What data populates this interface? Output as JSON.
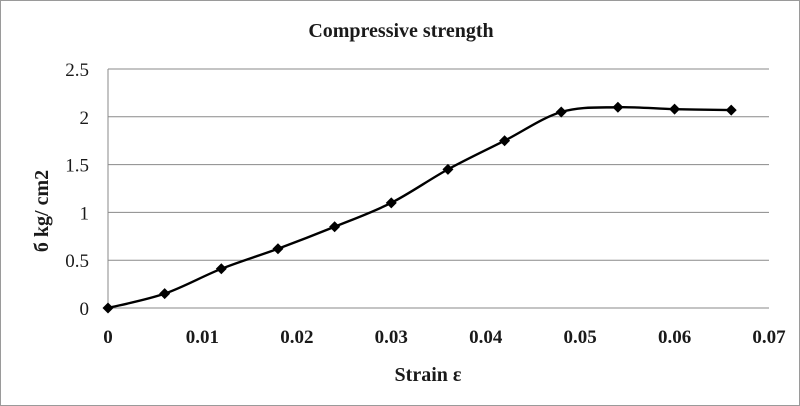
{
  "chart_data": {
    "type": "line",
    "title": "Compressive strength",
    "xlabel": "Strain ε",
    "ylabel": "б kg/ cm2",
    "xlim": [
      0,
      0.07
    ],
    "ylim": [
      0,
      2.5
    ],
    "x_ticks": [
      "0",
      "0.01",
      "0.02",
      "0.03",
      "0.04",
      "0.05",
      "0.06",
      "0.07"
    ],
    "y_ticks": [
      "0",
      "0.5",
      "1",
      "1.5",
      "2",
      "2.5"
    ],
    "grid": "horizontal",
    "smooth": true,
    "marker": "diamond",
    "line_color": "#000000",
    "series": [
      {
        "x": [
          0,
          0.006,
          0.012,
          0.018,
          0.024,
          0.03,
          0.036,
          0.042,
          0.048,
          0.054,
          0.06,
          0.066
        ],
        "y": [
          0,
          0.15,
          0.41,
          0.62,
          0.85,
          1.1,
          1.45,
          1.75,
          2.05,
          2.1,
          2.08,
          2.07
        ]
      }
    ]
  }
}
